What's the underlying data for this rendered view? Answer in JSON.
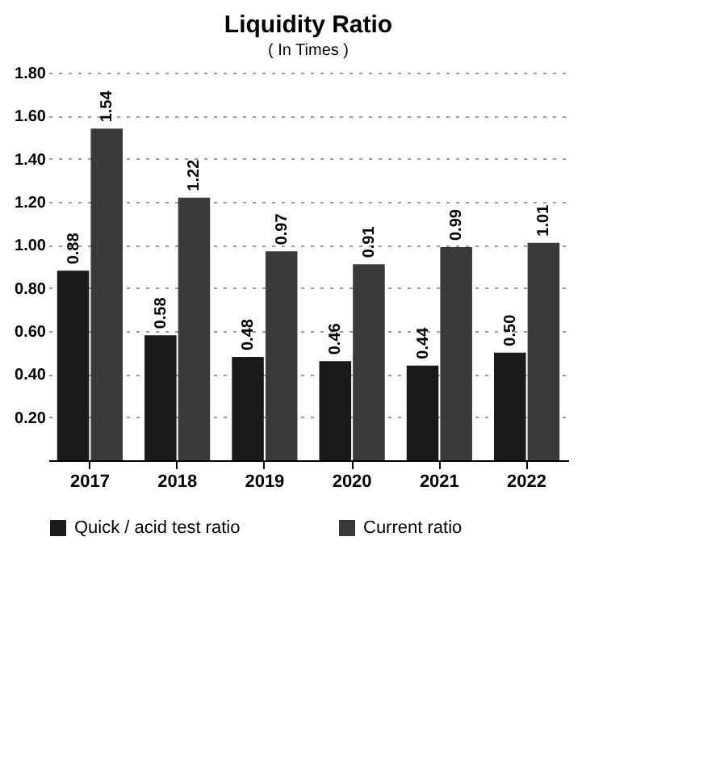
{
  "chart_data": {
    "type": "bar",
    "title": "Liquidity Ratio",
    "subtitle": "( In Times )",
    "categories": [
      "2017",
      "2018",
      "2019",
      "2020",
      "2021",
      "2022"
    ],
    "series": [
      {
        "name": "Quick / acid test ratio",
        "color": "#1a1a1a",
        "values": [
          0.88,
          0.58,
          0.48,
          0.46,
          0.44,
          0.5
        ],
        "value_labels": [
          "0.88",
          "0.58",
          "0.48",
          "0.46",
          "0.44",
          "0.50"
        ]
      },
      {
        "name": "Current ratio",
        "color": "#3a3a3a",
        "values": [
          1.54,
          1.22,
          0.97,
          0.91,
          0.99,
          1.01
        ],
        "value_labels": [
          "1.54",
          "1.22",
          "0.97",
          "0.91",
          "0.99",
          "1.01"
        ]
      }
    ],
    "ylim": [
      0,
      1.8
    ],
    "yticks": [
      {
        "value": 0,
        "label": null
      },
      {
        "value": 0.2,
        "label": "0.20"
      },
      {
        "value": 0.4,
        "label": "0.40"
      },
      {
        "value": 0.6,
        "label": "0.60"
      },
      {
        "value": 0.8,
        "label": "0.80"
      },
      {
        "value": 1.0,
        "label": "1.00"
      },
      {
        "value": 1.2,
        "label": "1.20"
      },
      {
        "value": 1.4,
        "label": "1.40"
      },
      {
        "value": 1.6,
        "label": "1.60"
      },
      {
        "value": 1.8,
        "label": "1.80"
      }
    ],
    "grid": "y",
    "legend": "bottom"
  }
}
